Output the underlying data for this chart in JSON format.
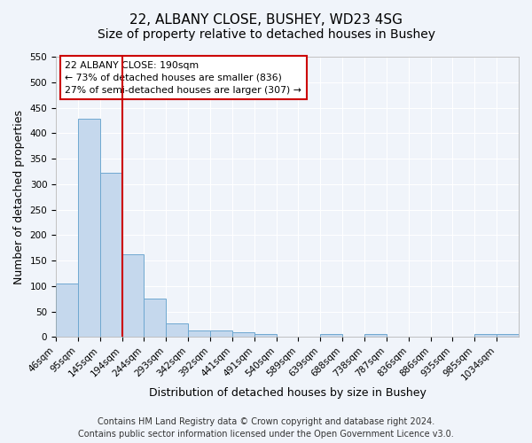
{
  "title": "22, ALBANY CLOSE, BUSHEY, WD23 4SG",
  "subtitle": "Size of property relative to detached houses in Bushey",
  "xlabel": "Distribution of detached houses by size in Bushey",
  "ylabel": "Number of detached properties",
  "bin_labels": [
    "46sqm",
    "95sqm",
    "145sqm",
    "194sqm",
    "244sqm",
    "293sqm",
    "342sqm",
    "392sqm",
    "441sqm",
    "491sqm",
    "540sqm",
    "589sqm",
    "639sqm",
    "688sqm",
    "738sqm",
    "787sqm",
    "836sqm",
    "886sqm",
    "935sqm",
    "985sqm",
    "1034sqm"
  ],
  "bar_heights": [
    105,
    428,
    322,
    163,
    75,
    27,
    13,
    13,
    10,
    5,
    0,
    0,
    5,
    0,
    5,
    0,
    0,
    0,
    0,
    5,
    5
  ],
  "bar_color": "#c5d8ed",
  "bar_edge_color": "#6fa8d0",
  "vline_x": 3,
  "vline_color": "#cc0000",
  "ylim": [
    0,
    550
  ],
  "yticks": [
    0,
    50,
    100,
    150,
    200,
    250,
    300,
    350,
    400,
    450,
    500,
    550
  ],
  "annotation_title": "22 ALBANY CLOSE: 190sqm",
  "annotation_line1": "← 73% of detached houses are smaller (836)",
  "annotation_line2": "27% of semi-detached houses are larger (307) →",
  "annotation_box_color": "#ffffff",
  "annotation_box_edge": "#cc0000",
  "footer_line1": "Contains HM Land Registry data © Crown copyright and database right 2024.",
  "footer_line2": "Contains public sector information licensed under the Open Government Licence v3.0.",
  "background_color": "#f0f4fa",
  "grid_color": "#ffffff",
  "title_fontsize": 11,
  "subtitle_fontsize": 10,
  "axis_label_fontsize": 9,
  "tick_fontsize": 7.5,
  "footer_fontsize": 7
}
